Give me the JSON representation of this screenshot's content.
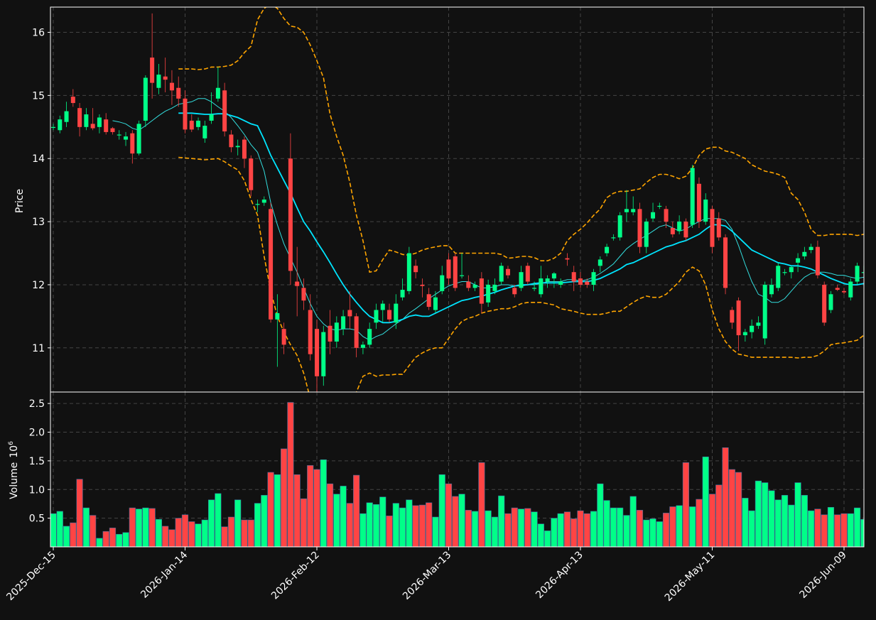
{
  "theme": {
    "background": "#111111",
    "up_color": "#00ff88",
    "down_color": "#ff4444",
    "ma_fast_color": "#33dddd",
    "ma_slow_color": "#00e5ff",
    "band_color": "#ffa500",
    "grid_color": "#444444",
    "axis_color": "#ffffff"
  },
  "chart_data": {
    "type": "candlestick",
    "price_axis": {
      "label": "Price",
      "ticks": [
        11,
        12,
        13,
        14,
        15,
        16
      ],
      "range": [
        10.3,
        16.4
      ]
    },
    "volume_axis": {
      "label": "Volume",
      "exponent_label": "10",
      "exponent": "6",
      "ticks": [
        "0.5",
        "1.0",
        "1.5",
        "2.0",
        "2.5"
      ],
      "tick_values": [
        0.5,
        1.0,
        1.5,
        2.0,
        2.5
      ],
      "range": [
        0,
        2.7
      ]
    },
    "x_tick_labels": [
      "2025-Dec-15",
      "2026-Jan-14",
      "2026-Feb-12",
      "2026-Mar-13",
      "2026-Apr-13",
      "2026-May-11",
      "2026-Jun-09"
    ],
    "x_tick_index": [
      0,
      20,
      40,
      60,
      80,
      100,
      120
    ],
    "grid": true,
    "candles": [
      [
        14.5,
        14.5,
        14.55,
        14.45
      ],
      [
        14.45,
        14.62,
        14.68,
        14.4
      ],
      [
        14.58,
        14.75,
        14.9,
        14.5
      ],
      [
        14.98,
        14.88,
        15.1,
        14.82
      ],
      [
        14.8,
        14.5,
        14.88,
        14.35
      ],
      [
        14.5,
        14.7,
        14.8,
        14.45
      ],
      [
        14.55,
        14.48,
        14.8,
        14.45
      ],
      [
        14.5,
        14.65,
        14.7,
        14.4
      ],
      [
        14.62,
        14.42,
        14.72,
        14.38
      ],
      [
        14.48,
        14.42,
        14.5,
        14.38
      ],
      [
        14.38,
        14.38,
        14.45,
        14.3
      ],
      [
        14.3,
        14.35,
        14.42,
        14.2
      ],
      [
        14.4,
        14.08,
        14.45,
        13.92
      ],
      [
        14.08,
        14.55,
        14.6,
        14.05
      ],
      [
        14.6,
        15.28,
        15.32,
        14.5
      ],
      [
        15.6,
        15.2,
        16.3,
        14.95
      ],
      [
        15.12,
        15.33,
        15.5,
        15.02
      ],
      [
        15.3,
        15.25,
        15.6,
        15.05
      ],
      [
        15.2,
        15.08,
        15.4,
        14.85
      ],
      [
        15.12,
        14.95,
        15.3,
        14.82
      ],
      [
        14.95,
        14.46,
        15.08,
        14.4
      ],
      [
        14.6,
        14.46,
        14.7,
        14.42
      ],
      [
        14.5,
        14.6,
        14.65,
        14.45
      ],
      [
        14.32,
        14.52,
        14.6,
        14.25
      ],
      [
        14.6,
        14.7,
        15.05,
        14.55
      ],
      [
        14.95,
        15.12,
        15.45,
        14.9
      ],
      [
        15.08,
        14.43,
        15.2,
        14.35
      ],
      [
        14.38,
        14.18,
        14.45,
        14.1
      ],
      [
        14.18,
        14.2,
        14.3,
        14.05
      ],
      [
        14.3,
        14.0,
        14.35,
        13.85
      ],
      [
        14.0,
        13.5,
        14.05,
        13.4
      ],
      [
        13.28,
        13.28,
        13.35,
        13.15
      ],
      [
        13.3,
        13.35,
        13.4,
        13.25
      ],
      [
        13.2,
        11.45,
        13.3,
        11.4
      ],
      [
        11.45,
        11.55,
        11.85,
        10.7
      ],
      [
        11.3,
        11.05,
        11.4,
        10.9
      ],
      [
        14.0,
        12.22,
        14.4,
        12.0
      ],
      [
        12.05,
        11.98,
        12.6,
        11.5
      ],
      [
        11.95,
        11.75,
        12.1,
        11.6
      ],
      [
        11.6,
        10.9,
        11.85,
        10.8
      ],
      [
        11.3,
        10.55,
        11.45,
        10.25
      ],
      [
        10.55,
        11.25,
        11.35,
        10.4
      ],
      [
        11.35,
        11.1,
        11.6,
        10.9
      ],
      [
        11.1,
        11.4,
        11.5,
        11.0
      ],
      [
        11.3,
        11.5,
        11.6,
        11.2
      ],
      [
        11.6,
        11.5,
        11.9,
        11.3
      ],
      [
        11.5,
        11.0,
        11.55,
        10.85
      ],
      [
        11.0,
        11.05,
        11.1,
        10.9
      ],
      [
        11.05,
        11.3,
        11.4,
        11.0
      ],
      [
        11.4,
        11.6,
        11.7,
        11.3
      ],
      [
        11.6,
        11.7,
        11.75,
        11.4
      ],
      [
        11.6,
        11.45,
        11.7,
        11.4
      ],
      [
        11.4,
        11.7,
        11.85,
        11.3
      ],
      [
        11.8,
        11.92,
        12.1,
        11.75
      ],
      [
        11.9,
        12.5,
        12.6,
        11.85
      ],
      [
        12.3,
        12.2,
        12.4,
        12.1
      ],
      [
        12.0,
        11.98,
        12.1,
        11.8
      ],
      [
        11.85,
        11.65,
        11.95,
        11.6
      ],
      [
        11.6,
        11.8,
        11.9,
        11.55
      ],
      [
        11.9,
        12.15,
        12.3,
        11.85
      ],
      [
        12.4,
        12.1,
        12.5,
        12.0
      ],
      [
        12.45,
        11.95,
        12.5,
        11.9
      ],
      [
        12.15,
        12.15,
        12.5,
        12.1
      ],
      [
        12.05,
        11.95,
        12.15,
        11.9
      ],
      [
        11.95,
        12.0,
        12.05,
        11.9
      ],
      [
        12.1,
        11.7,
        12.2,
        11.55
      ],
      [
        11.72,
        12.0,
        12.08,
        11.65
      ],
      [
        11.9,
        12.0,
        12.1,
        11.85
      ],
      [
        12.05,
        12.3,
        12.35,
        12.0
      ],
      [
        12.25,
        12.15,
        12.3,
        12.1
      ],
      [
        11.95,
        11.85,
        12.0,
        11.8
      ],
      [
        11.95,
        12.2,
        12.3,
        11.9
      ],
      [
        12.3,
        12.05,
        12.35,
        12.0
      ],
      [
        11.95,
        11.95,
        12.05,
        11.9
      ],
      [
        11.85,
        12.1,
        12.3,
        11.8
      ],
      [
        12.05,
        12.1,
        12.15,
        11.95
      ],
      [
        12.1,
        12.18,
        12.2,
        11.95
      ],
      [
        12.0,
        12.05,
        12.1,
        11.95
      ],
      [
        12.42,
        12.4,
        12.5,
        12.3
      ],
      [
        12.2,
        12.05,
        12.3,
        11.9
      ],
      [
        12.1,
        12.0,
        12.2,
        11.95
      ],
      [
        12.05,
        12.0,
        12.1,
        11.95
      ],
      [
        12.0,
        12.2,
        12.25,
        11.9
      ],
      [
        12.3,
        12.4,
        12.45,
        12.2
      ],
      [
        12.5,
        12.6,
        12.65,
        12.45
      ],
      [
        12.75,
        12.75,
        12.8,
        12.7
      ],
      [
        12.75,
        13.1,
        13.15,
        12.7
      ],
      [
        13.15,
        13.2,
        13.5,
        13.0
      ],
      [
        13.15,
        13.2,
        13.4,
        13.1
      ],
      [
        13.2,
        12.6,
        13.3,
        12.5
      ],
      [
        12.6,
        13.0,
        13.05,
        12.5
      ],
      [
        13.05,
        13.15,
        13.3,
        13.0
      ],
      [
        13.25,
        13.25,
        13.3,
        13.2
      ],
      [
        13.2,
        13.0,
        13.25,
        12.9
      ],
      [
        12.9,
        12.8,
        13.0,
        12.75
      ],
      [
        12.85,
        13.0,
        13.1,
        12.8
      ],
      [
        13.0,
        12.75,
        13.05,
        12.7
      ],
      [
        12.95,
        13.85,
        13.9,
        12.9
      ],
      [
        13.6,
        13.0,
        13.7,
        12.9
      ],
      [
        13.0,
        13.35,
        13.45,
        12.95
      ],
      [
        13.2,
        12.6,
        13.25,
        12.5
      ],
      [
        13.05,
        12.75,
        13.15,
        12.7
      ],
      [
        12.75,
        11.95,
        12.8,
        11.85
      ],
      [
        11.6,
        11.4,
        11.65,
        11.3
      ],
      [
        11.75,
        11.2,
        11.8,
        10.95
      ],
      [
        11.2,
        11.25,
        11.3,
        11.1
      ],
      [
        11.25,
        11.35,
        11.45,
        11.15
      ],
      [
        11.35,
        11.4,
        11.5,
        11.3
      ],
      [
        11.15,
        12.0,
        12.05,
        11.05
      ],
      [
        11.85,
        12.0,
        12.1,
        11.8
      ],
      [
        11.95,
        12.3,
        12.35,
        11.9
      ],
      [
        12.2,
        12.2,
        12.25,
        12.15
      ],
      [
        12.2,
        12.28,
        12.3,
        12.1
      ],
      [
        12.35,
        12.42,
        12.5,
        12.2
      ],
      [
        12.45,
        12.52,
        12.6,
        12.4
      ],
      [
        12.55,
        12.6,
        12.65,
        12.5
      ],
      [
        12.6,
        12.15,
        12.7,
        12.1
      ],
      [
        12.0,
        11.4,
        12.05,
        11.35
      ],
      [
        11.6,
        11.85,
        11.9,
        11.55
      ],
      [
        11.95,
        11.92,
        12.0,
        11.9
      ],
      [
        11.9,
        11.88,
        11.95,
        11.85
      ],
      [
        11.8,
        12.05,
        12.1,
        11.75
      ],
      [
        12.05,
        12.3,
        12.35,
        12.0
      ],
      [
        12.2,
        12.2,
        12.3,
        12.15
      ],
      [
        12.2,
        12.3,
        12.45,
        12.1
      ]
    ],
    "volume": [
      0.58,
      0.62,
      0.36,
      0.42,
      1.18,
      0.68,
      0.55,
      0.15,
      0.27,
      0.33,
      0.22,
      0.25,
      0.68,
      0.66,
      0.68,
      0.67,
      0.48,
      0.36,
      0.3,
      0.5,
      0.56,
      0.44,
      0.4,
      0.47,
      0.82,
      0.93,
      0.35,
      0.52,
      0.82,
      0.47,
      0.47,
      0.76,
      0.9,
      1.3,
      1.26,
      1.71,
      2.52,
      1.26,
      0.84,
      1.42,
      1.35,
      1.52,
      1.1,
      0.92,
      1.06,
      0.76,
      1.25,
      0.58,
      0.77,
      0.74,
      0.87,
      0.54,
      0.76,
      0.68,
      0.82,
      0.72,
      0.73,
      0.77,
      0.52,
      1.26,
      1.1,
      0.88,
      0.92,
      0.64,
      0.62,
      1.47,
      0.63,
      0.52,
      0.89,
      0.58,
      0.68,
      0.66,
      0.67,
      0.61,
      0.4,
      0.28,
      0.5,
      0.58,
      0.61,
      0.49,
      0.63,
      0.58,
      0.62,
      1.1,
      0.81,
      0.68,
      0.68,
      0.55,
      0.88,
      0.64,
      0.47,
      0.49,
      0.44,
      0.59,
      0.7,
      0.72,
      1.47,
      0.7,
      0.83,
      1.57,
      0.92,
      1.08,
      1.73,
      1.35,
      1.3,
      0.85,
      0.63,
      1.15,
      1.12,
      0.98,
      0.82,
      0.9,
      0.73,
      1.12,
      0.9,
      0.63,
      0.66,
      0.56,
      0.69,
      0.56,
      0.58,
      0.58,
      0.68,
      0.48
    ],
    "ma_fast": [
      null,
      null,
      null,
      null,
      null,
      null,
      null,
      null,
      null,
      14.6,
      14.58,
      14.55,
      14.48,
      14.45,
      14.52,
      14.6,
      14.68,
      14.75,
      14.8,
      14.86,
      14.88,
      14.9,
      14.95,
      14.95,
      14.9,
      14.82,
      14.75,
      14.65,
      14.52,
      14.38,
      14.22,
      14.1,
      13.8,
      13.3,
      12.95,
      12.65,
      12.42,
      12.2,
      11.95,
      11.7,
      11.5,
      11.38,
      11.3,
      11.28,
      11.3,
      11.3,
      11.28,
      11.18,
      11.12,
      11.18,
      11.22,
      11.3,
      11.38,
      11.45,
      11.55,
      11.62,
      11.7,
      11.78,
      11.85,
      11.92,
      11.98,
      12.02,
      12.05,
      12.05,
      12.0,
      11.95,
      11.95,
      11.97,
      12.0,
      12.0,
      11.98,
      11.98,
      12.0,
      12.0,
      12.02,
      12.05,
      12.05,
      12.05,
      12.08,
      12.08,
      12.06,
      12.08,
      12.12,
      12.18,
      12.25,
      12.33,
      12.45,
      12.57,
      12.65,
      12.72,
      12.78,
      12.85,
      12.92,
      12.95,
      12.9,
      12.85,
      12.88,
      12.95,
      13.0,
      13.05,
      13.05,
      13.05,
      13.02,
      12.88,
      12.62,
      12.32,
      12.05,
      11.85,
      11.8,
      11.72,
      11.72,
      11.78,
      11.9,
      12.02,
      12.12,
      12.18,
      12.2,
      12.2,
      12.18,
      12.15,
      12.15,
      12.12,
      12.1,
      12.12,
      12.18
    ],
    "ma_slow": [
      null,
      null,
      null,
      null,
      null,
      null,
      null,
      null,
      null,
      null,
      null,
      null,
      null,
      null,
      null,
      null,
      null,
      null,
      null,
      14.72,
      14.72,
      14.72,
      14.71,
      14.7,
      14.7,
      14.71,
      14.71,
      14.68,
      14.65,
      14.6,
      14.55,
      14.52,
      14.3,
      14.05,
      13.85,
      13.65,
      13.45,
      13.22,
      13.0,
      12.85,
      12.68,
      12.52,
      12.35,
      12.17,
      12.0,
      11.85,
      11.72,
      11.6,
      11.5,
      11.45,
      11.4,
      11.4,
      11.42,
      11.45,
      11.5,
      11.52,
      11.5,
      11.5,
      11.55,
      11.6,
      11.65,
      11.7,
      11.75,
      11.77,
      11.8,
      11.82,
      11.85,
      11.88,
      11.92,
      11.95,
      11.98,
      12.0,
      12.0,
      12.02,
      12.03,
      12.03,
      12.03,
      12.03,
      12.04,
      12.05,
      12.05,
      12.05,
      12.07,
      12.1,
      12.15,
      12.2,
      12.25,
      12.32,
      12.35,
      12.4,
      12.45,
      12.5,
      12.55,
      12.6,
      12.63,
      12.67,
      12.7,
      12.75,
      12.8,
      12.88,
      12.95,
      12.95,
      12.93,
      12.85,
      12.75,
      12.65,
      12.55,
      12.5,
      12.45,
      12.4,
      12.35,
      12.33,
      12.3,
      12.3,
      12.28,
      12.25,
      12.2,
      12.15,
      12.1,
      12.06,
      12.02,
      12.0,
      12.0,
      12.02,
      12.05
    ],
    "upper_band": [
      null,
      null,
      null,
      null,
      null,
      null,
      null,
      null,
      null,
      null,
      null,
      null,
      null,
      null,
      null,
      null,
      null,
      null,
      null,
      15.42,
      15.42,
      15.42,
      15.41,
      15.42,
      15.45,
      15.45,
      15.46,
      15.48,
      15.55,
      15.68,
      15.78,
      16.2,
      16.38,
      16.45,
      16.38,
      16.22,
      16.1,
      16.08,
      16.0,
      15.8,
      15.55,
      15.28,
      14.7,
      14.35,
      14.05,
      13.62,
      13.1,
      12.7,
      12.2,
      12.22,
      12.4,
      12.55,
      12.52,
      12.48,
      12.47,
      12.5,
      12.55,
      12.58,
      12.6,
      12.62,
      12.62,
      12.5,
      12.5,
      12.5,
      12.5,
      12.5,
      12.5,
      12.5,
      12.48,
      12.42,
      12.43,
      12.45,
      12.45,
      12.43,
      12.38,
      12.38,
      12.42,
      12.5,
      12.7,
      12.8,
      12.88,
      12.98,
      13.1,
      13.2,
      13.38,
      13.45,
      13.48,
      13.48,
      13.5,
      13.52,
      13.62,
      13.7,
      13.75,
      13.75,
      13.72,
      13.68,
      13.72,
      13.85,
      14.05,
      14.15,
      14.18,
      14.18,
      14.12,
      14.1,
      14.05,
      14.0,
      13.9,
      13.85,
      13.8,
      13.78,
      13.75,
      13.7,
      13.45,
      13.35,
      13.15,
      12.88,
      12.78,
      12.78,
      12.8,
      12.8,
      12.8,
      12.8,
      12.78,
      12.8,
      12.8
    ],
    "lower_band": [
      null,
      null,
      null,
      null,
      null,
      null,
      null,
      null,
      null,
      null,
      null,
      null,
      null,
      null,
      null,
      null,
      null,
      null,
      null,
      14.02,
      14.01,
      14.0,
      13.99,
      13.98,
      13.99,
      14.0,
      13.95,
      13.88,
      13.82,
      13.65,
      13.35,
      13.1,
      12.45,
      11.9,
      11.5,
      11.25,
      11.05,
      10.88,
      10.6,
      10.2,
      9.95,
      9.8,
      9.8,
      9.9,
      10.05,
      10.2,
      10.3,
      10.55,
      10.6,
      10.55,
      10.57,
      10.57,
      10.58,
      10.58,
      10.72,
      10.85,
      10.92,
      10.97,
      11.0,
      11.0,
      11.15,
      11.3,
      11.42,
      11.47,
      11.5,
      11.55,
      11.58,
      11.6,
      11.62,
      11.62,
      11.65,
      11.7,
      11.72,
      11.72,
      11.72,
      11.7,
      11.68,
      11.62,
      11.6,
      11.58,
      11.55,
      11.53,
      11.53,
      11.53,
      11.55,
      11.58,
      11.58,
      11.65,
      11.72,
      11.78,
      11.82,
      11.8,
      11.8,
      11.85,
      11.95,
      12.05,
      12.2,
      12.28,
      12.22,
      12.0,
      11.6,
      11.3,
      11.1,
      10.98,
      10.9,
      10.88,
      10.85,
      10.85,
      10.85,
      10.85,
      10.85,
      10.85,
      10.85,
      10.84,
      10.85,
      10.85,
      10.88,
      10.95,
      11.05,
      11.07,
      11.08,
      11.1,
      11.12,
      11.2,
      11.25
    ]
  }
}
